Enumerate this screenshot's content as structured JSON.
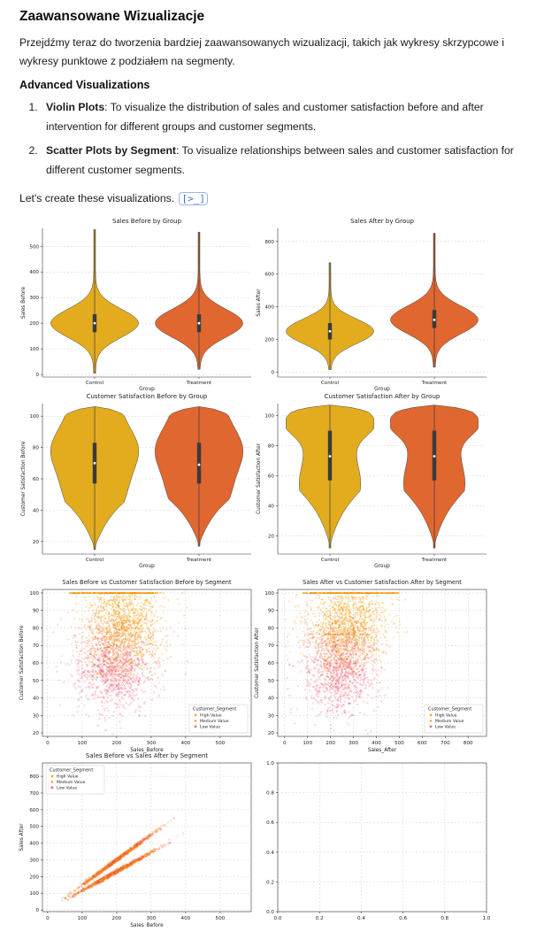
{
  "heading": "Zaawansowane Wizualizacje",
  "intro": "Przejdźmy teraz do tworzenia bardziej zaawansowanych wizualizacji, takich jak wykresy skrzypcowe i wykresy punktowe z podziałem na segmenty.",
  "subheading": "Advanced Visualizations",
  "list": [
    {
      "num": "1.",
      "bold": "Violin Plots",
      "text": ": To visualize the distribution of sales and customer satisfaction before and after intervention for different groups and customer segments."
    },
    {
      "num": "2.",
      "bold": "Scatter Plots by Segment",
      "text": ": To visualize relationships between sales and customer satisfaction for different customer segments."
    }
  ],
  "lets_text": "Let's create these visualizations.",
  "code_icon": "code-output-icon",
  "colors": {
    "control": "#e2ac1e",
    "treatment": "#e0672f",
    "high": "#f5a300",
    "medium": "#f07a1e",
    "low": "#e8305a"
  },
  "chart_data": [
    {
      "type": "violin",
      "title": "Sales Before by Group",
      "xlabel": "Group",
      "ylabel": "Sales Before",
      "categories": [
        "Control",
        "Treatment"
      ],
      "ylim": [
        -10,
        570
      ],
      "yticks": [
        0,
        100,
        200,
        300,
        400,
        500
      ],
      "violins": [
        {
          "name": "Control",
          "min": 5,
          "max": 565,
          "q1": 165,
          "median": 200,
          "q3": 235
        },
        {
          "name": "Treatment",
          "min": 20,
          "max": 555,
          "q1": 165,
          "median": 200,
          "q3": 235
        }
      ]
    },
    {
      "type": "violin",
      "title": "Sales After by Group",
      "xlabel": "Group",
      "ylabel": "Sales After",
      "categories": [
        "Control",
        "Treatment"
      ],
      "ylim": [
        -30,
        880
      ],
      "yticks": [
        0,
        200,
        400,
        600,
        800
      ],
      "violins": [
        {
          "name": "Control",
          "min": 15,
          "max": 670,
          "q1": 200,
          "median": 250,
          "q3": 300
        },
        {
          "name": "Treatment",
          "min": 30,
          "max": 850,
          "q1": 270,
          "median": 320,
          "q3": 380
        }
      ]
    },
    {
      "type": "violin",
      "title": "Customer Satisfaction Before by Group",
      "xlabel": "Group",
      "ylabel": "Customer Satisfaction Before",
      "categories": [
        "Control",
        "Treatment"
      ],
      "ylim": [
        12,
        108
      ],
      "yticks": [
        20,
        40,
        60,
        80,
        100
      ],
      "violins": [
        {
          "name": "Control",
          "min": 15,
          "max": 106,
          "q1": 57,
          "median": 70,
          "q3": 83
        },
        {
          "name": "Treatment",
          "min": 17,
          "max": 106,
          "q1": 57,
          "median": 69,
          "q3": 83
        }
      ]
    },
    {
      "type": "violin",
      "title": "Customer Satisfaction After by Group",
      "xlabel": "Group",
      "ylabel": "Customer Satisfaction After",
      "categories": [
        "Control",
        "Treatment"
      ],
      "ylim": [
        8,
        108
      ],
      "yticks": [
        20,
        40,
        60,
        80,
        100
      ],
      "violins": [
        {
          "name": "Control",
          "min": 12,
          "max": 107,
          "q1": 57,
          "median": 73,
          "q3": 90
        },
        {
          "name": "Treatment",
          "min": 12,
          "max": 107,
          "q1": 57,
          "median": 73,
          "q3": 90
        }
      ]
    },
    {
      "type": "scatter",
      "title": "Sales Before vs Customer Satisfaction Before by Segment",
      "xlabel": "Sales_Before",
      "ylabel": "Customer Satisfaction Before",
      "xlim": [
        -15,
        590
      ],
      "ylim": [
        18,
        102
      ],
      "xticks": [
        0,
        100,
        200,
        300,
        400,
        500
      ],
      "yticks": [
        20,
        30,
        40,
        50,
        60,
        70,
        80,
        90,
        100
      ],
      "legend_title": "Customer_Segment",
      "legend_position": "lower-right",
      "series": [
        {
          "name": "High Value",
          "marker": "circle"
        },
        {
          "name": "Medium Value",
          "marker": "triangle"
        },
        {
          "name": "Low Value",
          "marker": "x"
        }
      ]
    },
    {
      "type": "scatter",
      "title": "Sales After vs Customer Satisfaction After by Segment",
      "xlabel": "Sales_After",
      "ylabel": "Customer Satisfaction After",
      "xlim": [
        -30,
        880
      ],
      "ylim": [
        18,
        102
      ],
      "xticks": [
        0,
        100,
        200,
        300,
        400,
        500,
        600,
        700,
        800
      ],
      "yticks": [
        20,
        30,
        40,
        50,
        60,
        70,
        80,
        90,
        100
      ],
      "legend_title": "Customer_Segment",
      "legend_position": "lower-right",
      "series": [
        {
          "name": "High Value",
          "marker": "circle"
        },
        {
          "name": "Medium Value",
          "marker": "triangle"
        },
        {
          "name": "Low Value",
          "marker": "x"
        }
      ]
    },
    {
      "type": "scatter",
      "title": "Sales Before vs Sales After by Segment",
      "xlabel": "Sales_Before",
      "ylabel": "Sales After",
      "xlim": [
        -15,
        590
      ],
      "ylim": [
        -10,
        880
      ],
      "xticks": [
        0,
        100,
        200,
        300,
        400,
        500
      ],
      "yticks": [
        0,
        100,
        200,
        300,
        400,
        500,
        600,
        700,
        800
      ],
      "legend_title": "Customer_Segment",
      "legend_position": "upper-left",
      "series": [
        {
          "name": "High Value",
          "marker": "circle"
        },
        {
          "name": "Medium Value",
          "marker": "triangle"
        },
        {
          "name": "Low Value",
          "marker": "x"
        }
      ],
      "bands": [
        {
          "slope": 1.5,
          "x": [
            40,
            400
          ]
        },
        {
          "slope": 1.15,
          "x": [
            40,
            400
          ]
        }
      ]
    },
    {
      "type": "empty",
      "title": "",
      "xlim": [
        0,
        1
      ],
      "ylim": [
        0,
        1
      ],
      "xticks": [
        0.0,
        0.2,
        0.4,
        0.6,
        0.8,
        1.0
      ],
      "yticks": [
        0.0,
        0.2,
        0.4,
        0.6,
        0.8,
        1.0
      ]
    }
  ]
}
